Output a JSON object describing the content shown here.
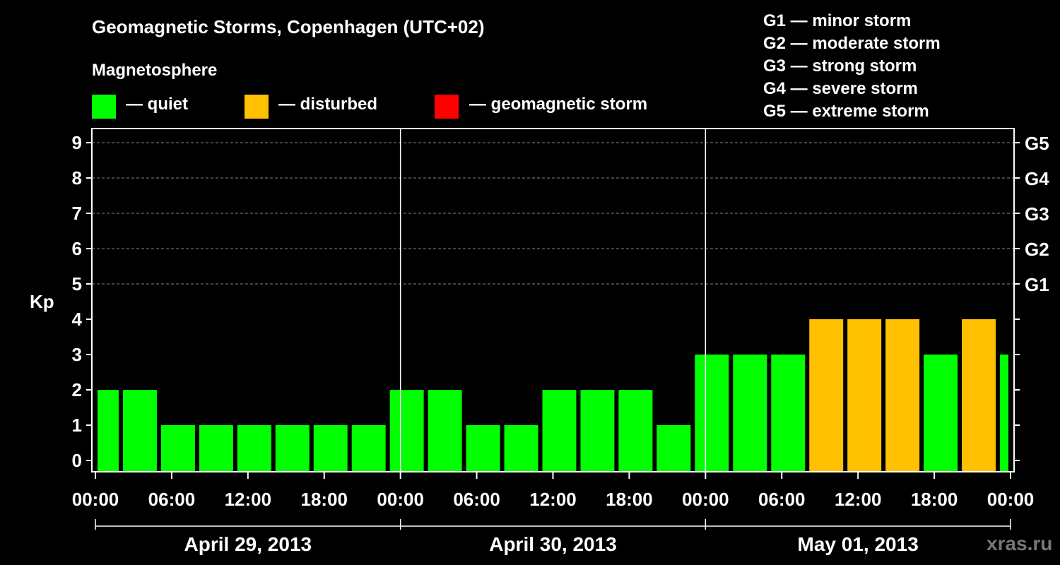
{
  "header": {
    "title": "Geomagnetic Storms, Copenhagen (UTC+02)",
    "magnetosphere": "Magnetosphere",
    "legend": [
      {
        "label": "— quiet",
        "color": "#00ff00"
      },
      {
        "label": "— disturbed",
        "color": "#ffc000"
      },
      {
        "label": "— geomagnetic storm",
        "color": "#ff0000"
      }
    ],
    "storm_levels": [
      "G1 — minor storm",
      "G2 — moderate storm",
      "G3 — strong storm",
      "G4 — severe storm",
      "G5 — extreme storm"
    ]
  },
  "watermark": "xras.ru",
  "colors": {
    "background": "#000000",
    "quiet": "#00ff00",
    "disturbed": "#ffc000",
    "storm": "#ff0000",
    "axis": "#ffffff",
    "grid": "#888888"
  },
  "chart_data": {
    "type": "bar",
    "title": "Geomagnetic Storms, Copenhagen (UTC+02)",
    "ylabel": "Kp",
    "ylim": [
      0,
      9
    ],
    "yticks": [
      "0",
      "1",
      "2",
      "3",
      "4",
      "5",
      "6",
      "7",
      "8",
      "9"
    ],
    "g_scale": [
      {
        "label": "G1",
        "kp": 5
      },
      {
        "label": "G2",
        "kp": 6
      },
      {
        "label": "G3",
        "kp": 7
      },
      {
        "label": "G4",
        "kp": 8
      },
      {
        "label": "G5",
        "kp": 9
      }
    ],
    "grid": true,
    "x_hours_total": 72,
    "x_tick_labels": [
      "00:00",
      "06:00",
      "12:00",
      "18:00",
      "00:00",
      "06:00",
      "12:00",
      "18:00",
      "00:00",
      "06:00",
      "12:00",
      "18:00",
      "00:00"
    ],
    "days": [
      "April 29, 2013",
      "April 30, 2013",
      "May 01, 2013"
    ],
    "bars": [
      {
        "start": 0,
        "end": 2,
        "kp": 2,
        "status": "quiet"
      },
      {
        "start": 2,
        "end": 5,
        "kp": 2,
        "status": "quiet"
      },
      {
        "start": 5,
        "end": 8,
        "kp": 1,
        "status": "quiet"
      },
      {
        "start": 8,
        "end": 11,
        "kp": 1,
        "status": "quiet"
      },
      {
        "start": 11,
        "end": 14,
        "kp": 1,
        "status": "quiet"
      },
      {
        "start": 14,
        "end": 17,
        "kp": 1,
        "status": "quiet"
      },
      {
        "start": 17,
        "end": 20,
        "kp": 1,
        "status": "quiet"
      },
      {
        "start": 20,
        "end": 23,
        "kp": 1,
        "status": "quiet"
      },
      {
        "start": 23,
        "end": 26,
        "kp": 2,
        "status": "quiet"
      },
      {
        "start": 26,
        "end": 29,
        "kp": 2,
        "status": "quiet"
      },
      {
        "start": 29,
        "end": 32,
        "kp": 1,
        "status": "quiet"
      },
      {
        "start": 32,
        "end": 35,
        "kp": 1,
        "status": "quiet"
      },
      {
        "start": 35,
        "end": 38,
        "kp": 2,
        "status": "quiet"
      },
      {
        "start": 38,
        "end": 41,
        "kp": 2,
        "status": "quiet"
      },
      {
        "start": 41,
        "end": 44,
        "kp": 2,
        "status": "quiet"
      },
      {
        "start": 44,
        "end": 47,
        "kp": 1,
        "status": "quiet"
      },
      {
        "start": 47,
        "end": 50,
        "kp": 3,
        "status": "quiet"
      },
      {
        "start": 50,
        "end": 53,
        "kp": 3,
        "status": "quiet"
      },
      {
        "start": 53,
        "end": 56,
        "kp": 3,
        "status": "quiet"
      },
      {
        "start": 56,
        "end": 59,
        "kp": 4,
        "status": "disturbed"
      },
      {
        "start": 59,
        "end": 62,
        "kp": 4,
        "status": "disturbed"
      },
      {
        "start": 62,
        "end": 65,
        "kp": 4,
        "status": "disturbed"
      },
      {
        "start": 65,
        "end": 68,
        "kp": 3,
        "status": "quiet"
      },
      {
        "start": 68,
        "end": 71,
        "kp": 4,
        "status": "disturbed"
      },
      {
        "start": 71,
        "end": 72,
        "kp": 3,
        "status": "quiet"
      }
    ]
  }
}
